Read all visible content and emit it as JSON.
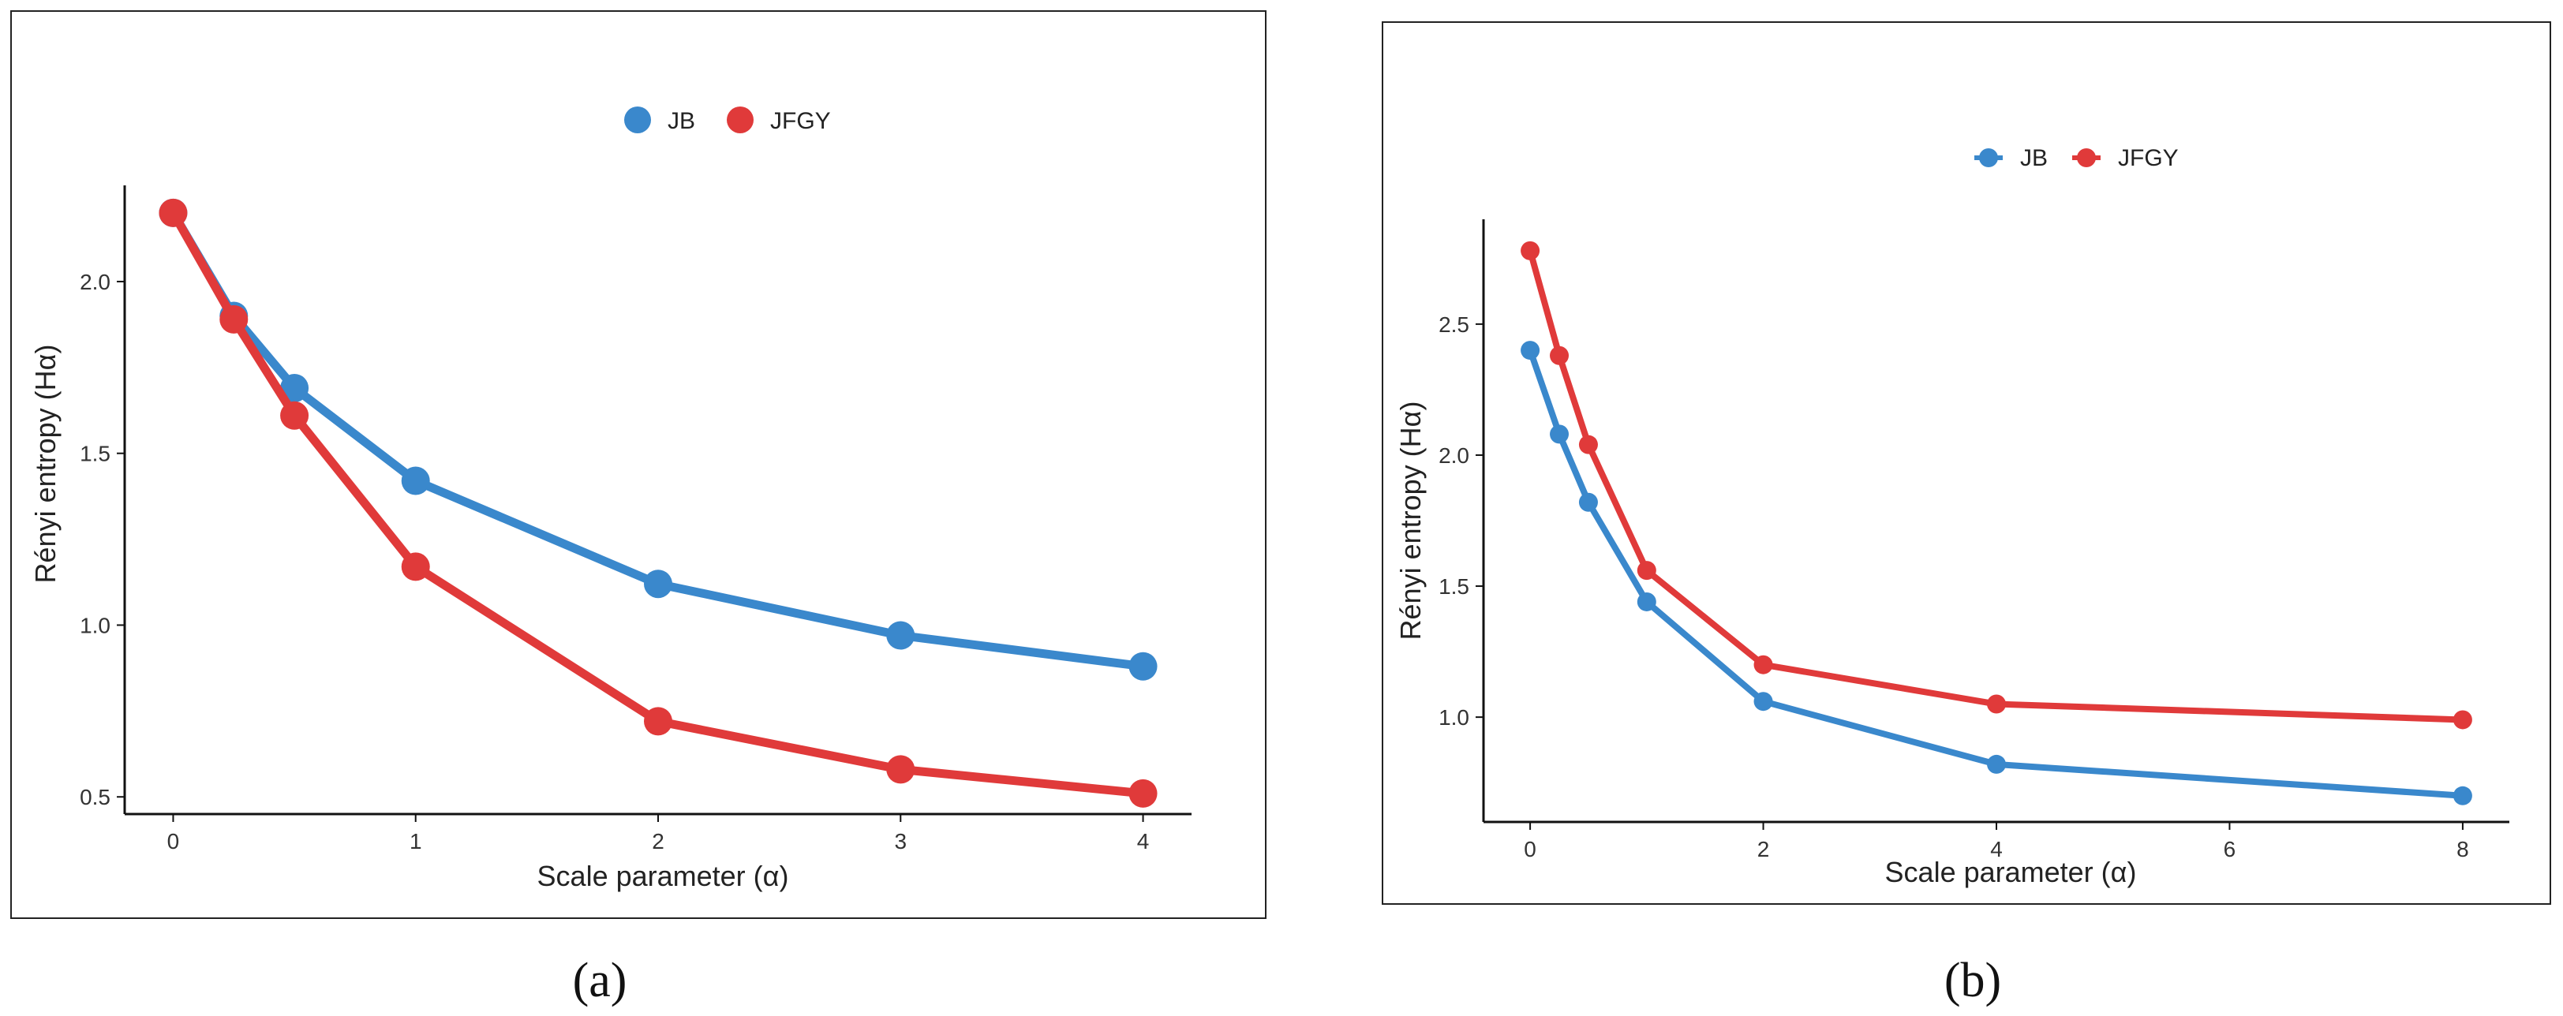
{
  "colors": {
    "JB": "#3a88cc",
    "JFGY": "#e03a3a"
  },
  "chart_data": [
    {
      "panel": "(a)",
      "type": "line",
      "title": "",
      "xlabel": "Scale parameter (α)",
      "ylabel": "Rényi entropy (Hα)",
      "xlim": [
        -0.2,
        4.2
      ],
      "ylim": [
        0.45,
        2.28
      ],
      "xticks": [
        0,
        1,
        2,
        3,
        4
      ],
      "yticks": [
        0.5,
        1.0,
        1.5,
        2.0
      ],
      "ytick_labels": [
        "0.5",
        "1.0",
        "1.5",
        "2.0"
      ],
      "legend": "top-center",
      "grid": false,
      "series": [
        {
          "name": "JB",
          "x": [
            0,
            0.25,
            0.5,
            1,
            2,
            3,
            4
          ],
          "values": [
            2.2,
            1.9,
            1.69,
            1.42,
            1.12,
            0.97,
            0.88
          ]
        },
        {
          "name": "JFGY",
          "x": [
            0,
            0.25,
            0.5,
            1,
            2,
            3,
            4
          ],
          "values": [
            2.2,
            1.89,
            1.61,
            1.17,
            0.72,
            0.58,
            0.51
          ]
        }
      ]
    },
    {
      "panel": "(b)",
      "type": "line",
      "title": "",
      "xlabel": "Scale parameter (α)",
      "ylabel": "Rényi entropy (Hα)",
      "xlim": [
        -0.4,
        8.4
      ],
      "ylim": [
        0.6,
        2.9
      ],
      "xticks": [
        0,
        2,
        4,
        6,
        8
      ],
      "yticks": [
        1.0,
        1.5,
        2.0,
        2.5
      ],
      "ytick_labels": [
        "1.0",
        "1.5",
        "2.0",
        "2.5"
      ],
      "legend": "top-center",
      "grid": false,
      "series": [
        {
          "name": "JB",
          "x": [
            0,
            0.25,
            0.5,
            1,
            2,
            4,
            8
          ],
          "values": [
            2.4,
            2.08,
            1.82,
            1.44,
            1.06,
            0.82,
            0.7
          ]
        },
        {
          "name": "JFGY",
          "x": [
            0,
            0.25,
            0.5,
            1,
            2,
            4,
            8
          ],
          "values": [
            2.78,
            2.38,
            2.04,
            1.56,
            1.2,
            1.05,
            0.99
          ]
        }
      ]
    }
  ]
}
